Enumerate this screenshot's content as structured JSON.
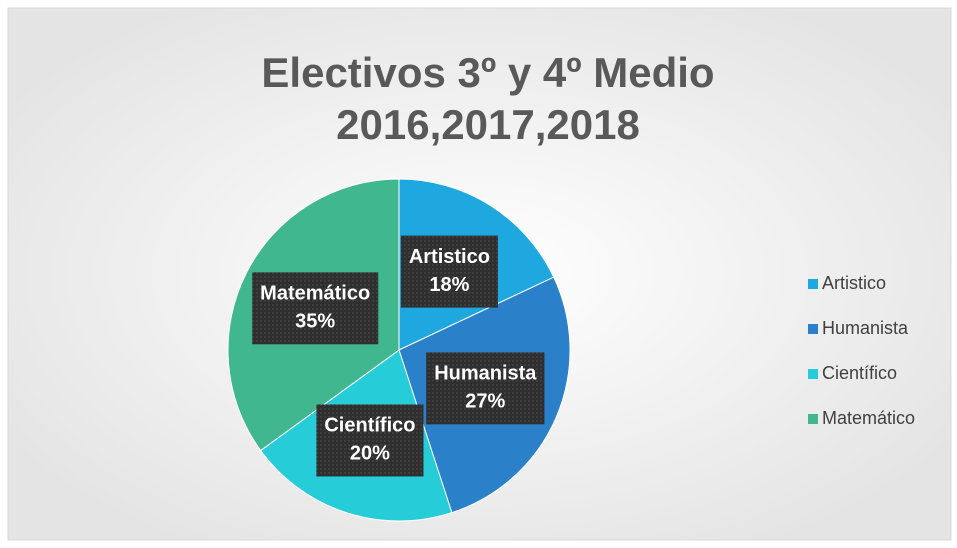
{
  "chart_data": {
    "type": "pie",
    "title": [
      "Electivos 3º y 4º Medio",
      "2016,2017,2018"
    ],
    "categories": [
      "Artistico",
      "Humanista",
      "Científico",
      "Matemático"
    ],
    "values": [
      18,
      27,
      20,
      35
    ],
    "value_labels": [
      "18%",
      "27%",
      "20%",
      "35%"
    ],
    "colors": [
      "#1fa8e0",
      "#2a80c9",
      "#27ccd9",
      "#40b78e"
    ],
    "legend": "right"
  }
}
